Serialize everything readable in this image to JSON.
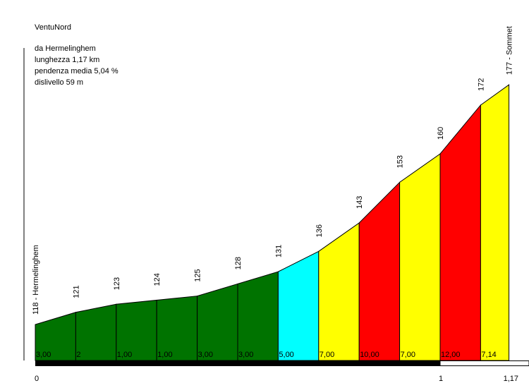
{
  "info": {
    "title": "VentuNord",
    "from": "da Hermelinghem",
    "length": "lunghezza 1,17 km",
    "gradient": "pendenza media 5,04 %",
    "elevation_gain": "dislivello 59 m"
  },
  "colors": {
    "green": "#007300",
    "cyan": "#00ffff",
    "yellow": "#ffff00",
    "red": "#ff0000",
    "outline": "#000000"
  },
  "chart_data": {
    "type": "area",
    "title": "VentuNord",
    "x_unit": "km",
    "x_range": [
      0,
      1.17
    ],
    "x_ticks": [
      "0",
      "1",
      "1,17"
    ],
    "points": [
      {
        "x": 0.0,
        "elevation": 118,
        "label": "118 - Hermelinghem"
      },
      {
        "x": 0.1,
        "elevation": 121,
        "label": "121"
      },
      {
        "x": 0.2,
        "elevation": 123,
        "label": "123"
      },
      {
        "x": 0.3,
        "elevation": 124,
        "label": "124"
      },
      {
        "x": 0.4,
        "elevation": 125,
        "label": "125"
      },
      {
        "x": 0.5,
        "elevation": 128,
        "label": "128"
      },
      {
        "x": 0.6,
        "elevation": 131,
        "label": "131"
      },
      {
        "x": 0.7,
        "elevation": 136,
        "label": "136"
      },
      {
        "x": 0.8,
        "elevation": 143,
        "label": "143"
      },
      {
        "x": 0.9,
        "elevation": 153,
        "label": "153"
      },
      {
        "x": 1.0,
        "elevation": 160,
        "label": "160"
      },
      {
        "x": 1.1,
        "elevation": 172,
        "label": "172"
      },
      {
        "x": 1.17,
        "elevation": 177,
        "label": "177 - Sommet"
      }
    ],
    "segments": [
      {
        "gradient": "3,00",
        "color": "green"
      },
      {
        "gradient": "2",
        "color": "green"
      },
      {
        "gradient": "1,00",
        "color": "green"
      },
      {
        "gradient": "1,00",
        "color": "green"
      },
      {
        "gradient": "3,00",
        "color": "green"
      },
      {
        "gradient": "3,00",
        "color": "green"
      },
      {
        "gradient": "5,00",
        "color": "cyan"
      },
      {
        "gradient": "7,00",
        "color": "yellow"
      },
      {
        "gradient": "10,00",
        "color": "red"
      },
      {
        "gradient": "7,00",
        "color": "yellow"
      },
      {
        "gradient": "12,00",
        "color": "red"
      },
      {
        "gradient": "7,14",
        "color": "yellow"
      }
    ]
  }
}
